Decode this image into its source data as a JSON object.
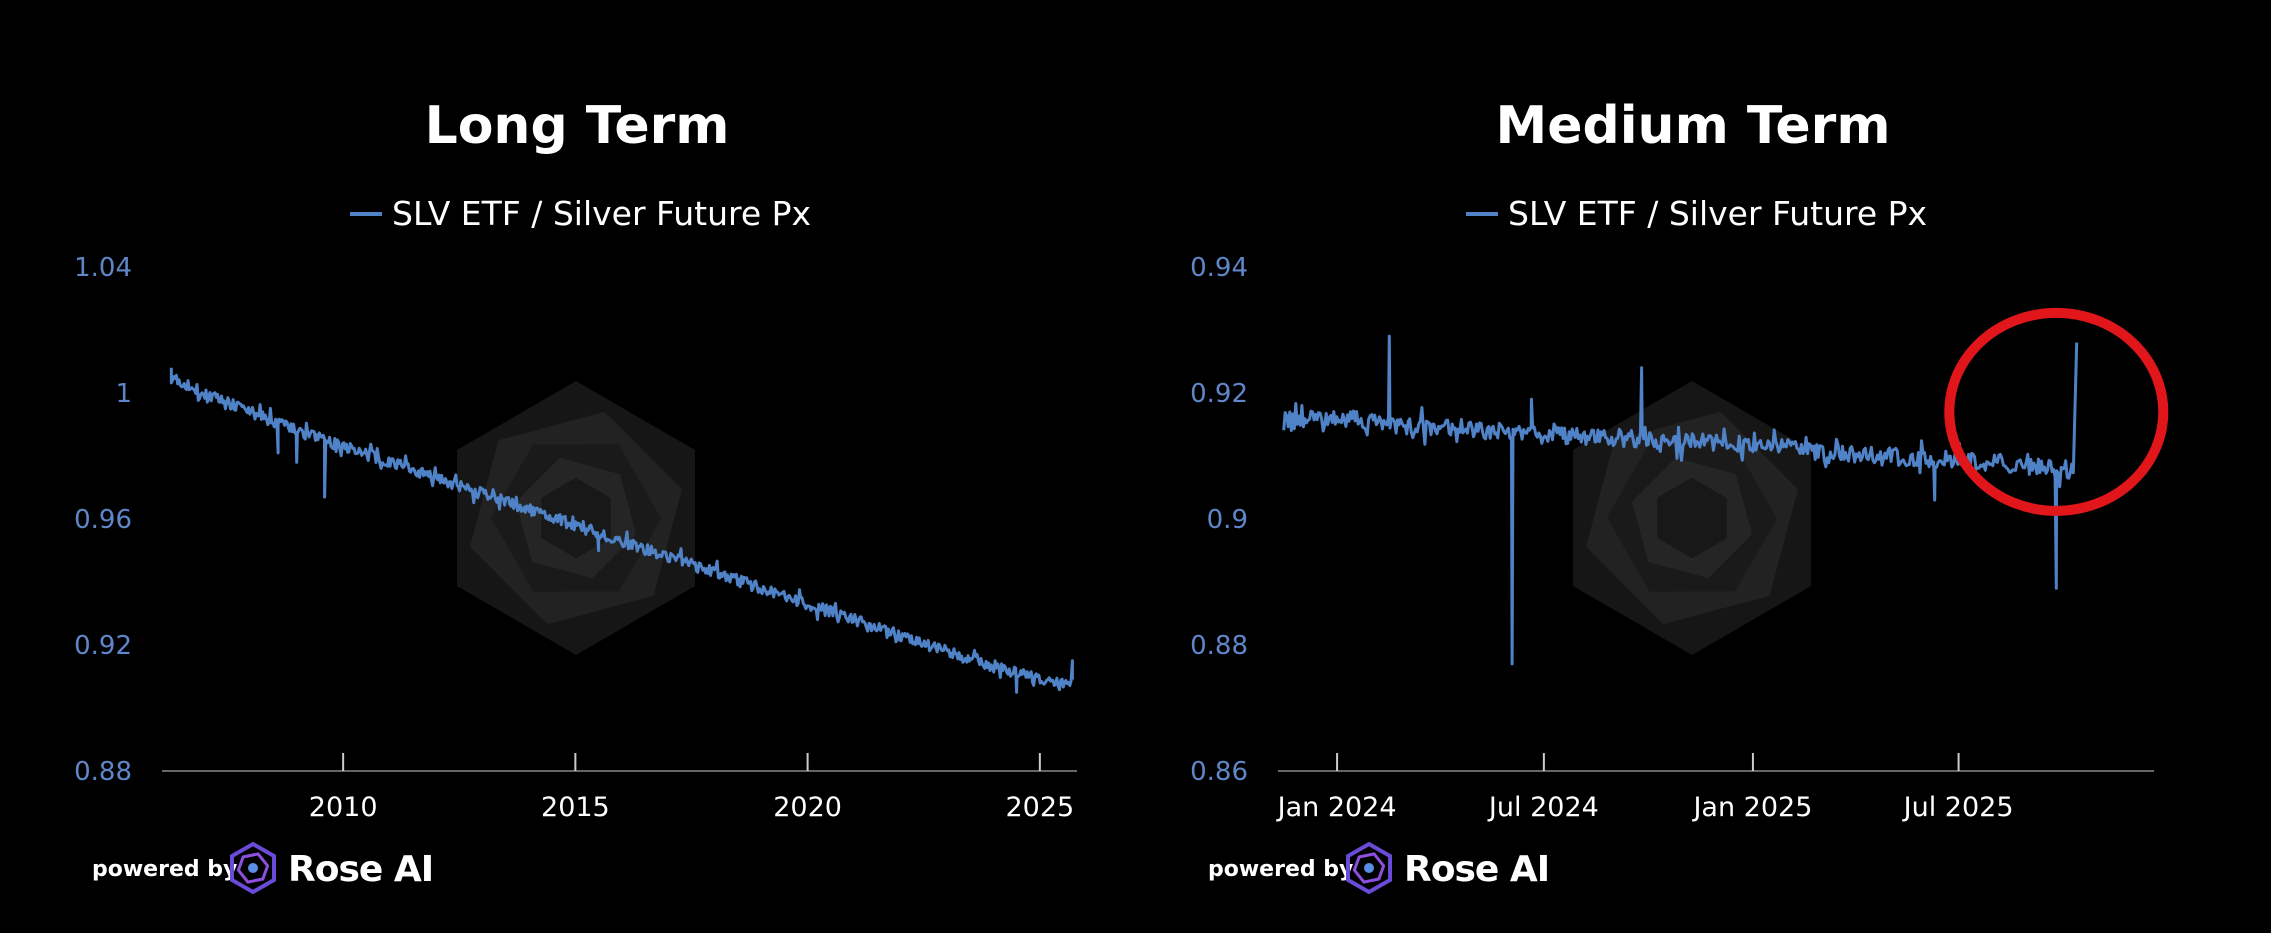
{
  "chart_data": [
    {
      "type": "line",
      "title": "Long Term",
      "legend": "top-center",
      "grid": false,
      "series": [
        {
          "name": "SLV ETF / Silver Future Px",
          "color": "#4f82c6",
          "x": [
            2006.3,
            2007,
            2008,
            2009,
            2010,
            2011,
            2012,
            2013,
            2014,
            2015,
            2016,
            2017,
            2018,
            2019,
            2020,
            2021,
            2022,
            2023,
            2024,
            2025,
            2025.7
          ],
          "y": [
            1.005,
            1.0,
            0.994,
            0.988,
            0.983,
            0.978,
            0.973,
            0.968,
            0.963,
            0.958,
            0.953,
            0.948,
            0.943,
            0.938,
            0.933,
            0.928,
            0.923,
            0.918,
            0.913,
            0.909,
            0.908
          ]
        }
      ],
      "spikes": [
        {
          "x": 2006.3,
          "y": 1.008
        },
        {
          "x": 2008.6,
          "y": 0.981
        },
        {
          "x": 2009.0,
          "y": 0.978
        },
        {
          "x": 2009.6,
          "y": 0.967
        },
        {
          "x": 2015.5,
          "y": 0.95
        },
        {
          "x": 2024.5,
          "y": 0.905
        },
        {
          "x": 2025.7,
          "y": 0.915
        }
      ],
      "x_ticks": [
        2010,
        2015,
        2020,
        2025
      ],
      "x_tick_labels": [
        "2010",
        "2015",
        "2020",
        "2025"
      ],
      "xlim": [
        2006.1,
        2025.8
      ],
      "y_ticks": [
        0.88,
        0.92,
        0.96,
        1,
        1.04
      ],
      "y_tick_labels": [
        "0.88",
        "0.92",
        "0.96",
        "1",
        "1.04"
      ],
      "ylim": [
        0.88,
        1.04
      ]
    },
    {
      "type": "line",
      "title": "Medium Term",
      "legend": "top-center",
      "grid": false,
      "series": [
        {
          "name": "SLV ETF / Silver Future Px",
          "color": "#4f82c6",
          "x": [
            "2023-11-15",
            "2023-12-15",
            "2024-01-15",
            "2024-02-15",
            "2024-03-15",
            "2024-04-15",
            "2024-05-15",
            "2024-06-15",
            "2024-07-15",
            "2024-08-15",
            "2024-09-15",
            "2024-10-15",
            "2024-11-15",
            "2024-12-15",
            "2025-01-15",
            "2025-02-15",
            "2025-03-15",
            "2025-04-15",
            "2025-05-15",
            "2025-06-15",
            "2025-07-15",
            "2025-08-15",
            "2025-09-15",
            "2025-10-10"
          ],
          "y": [
            0.9155,
            0.9162,
            0.9158,
            0.915,
            0.9148,
            0.9145,
            0.914,
            0.9135,
            0.9133,
            0.913,
            0.9128,
            0.9125,
            0.9122,
            0.912,
            0.9115,
            0.911,
            0.9105,
            0.91,
            0.9098,
            0.9095,
            0.9092,
            0.9088,
            0.9082,
            0.9078
          ]
        }
      ],
      "spikes": [
        {
          "x": "2024-02-16",
          "y": 0.929
        },
        {
          "x": "2024-06-03",
          "y": 0.877
        },
        {
          "x": "2024-06-20",
          "y": 0.919
        },
        {
          "x": "2024-09-25",
          "y": 0.924
        },
        {
          "x": "2025-06-10",
          "y": 0.903
        },
        {
          "x": "2025-09-25",
          "y": 0.889
        },
        {
          "x": "2025-10-13",
          "y": 0.928
        }
      ],
      "annotation": {
        "shape": "circle",
        "color": "#e0161b",
        "x": "2025-09-25",
        "y": 0.917
      },
      "x_ticks": [
        "2024-01-01",
        "2024-07-01",
        "2025-01-01",
        "2025-07-01"
      ],
      "x_tick_labels": [
        "Jan 2024",
        "Jul 2024",
        "Jan 2025",
        "Jul 2025"
      ],
      "xlim": [
        "2023-11-10",
        "2025-12-20"
      ],
      "y_ticks": [
        0.86,
        0.88,
        0.9,
        0.92,
        0.94
      ],
      "y_tick_labels": [
        "0.86",
        "0.88",
        "0.9",
        "0.92",
        "0.94"
      ],
      "ylim": [
        0.86,
        0.94
      ]
    }
  ],
  "footer": {
    "powered_label": "powered by",
    "brand_name": "Rose AI",
    "logo_icon": "rose-logo-icon"
  },
  "watermark_icon": "rose-hexagon-watermark-icon",
  "colors": {
    "background": "#000000",
    "line": "#4f82c6",
    "tick_y": "#5f86c8",
    "axis": "#666666",
    "annotation": "#e0161b"
  }
}
